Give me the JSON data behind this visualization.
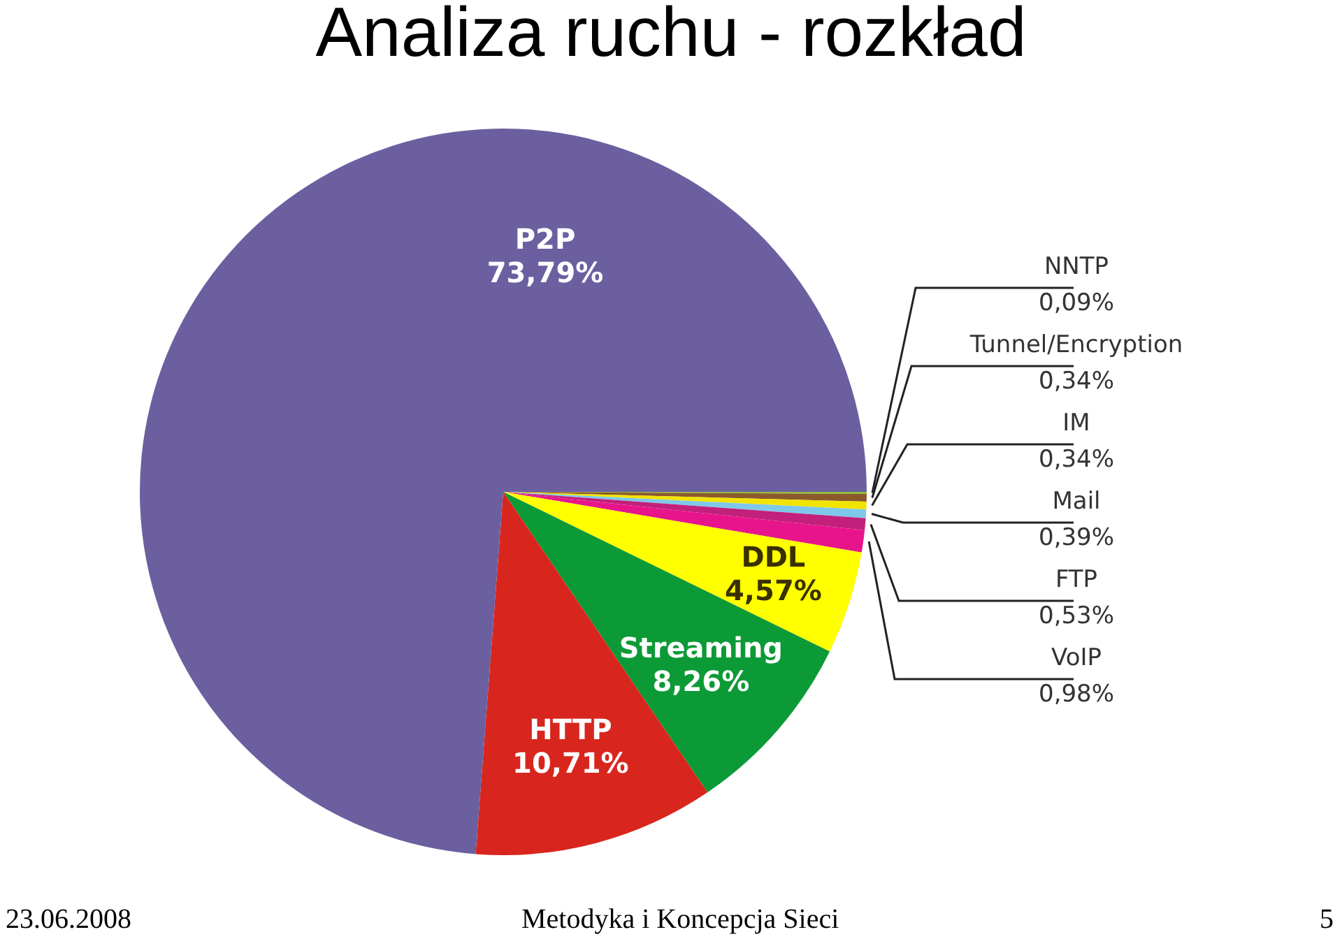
{
  "chart_data": {
    "type": "pie",
    "title": "Analiza ruchu - rozkład",
    "categories": [
      "NNTP",
      "Tunnel/Encryption",
      "IM",
      "Mail",
      "FTP",
      "VoIP",
      "DDL",
      "Streaming",
      "HTTP",
      "P2P"
    ],
    "values": [
      0.09,
      0.34,
      0.34,
      0.39,
      0.53,
      0.98,
      4.57,
      8.26,
      10.71,
      73.79
    ],
    "value_labels": [
      "0,09%",
      "0,34%",
      "0,34%",
      "0,39%",
      "0,53%",
      "0,98%",
      "4,57%",
      "8,26%",
      "10,71%",
      "73,79%"
    ],
    "colors": [
      "#8fbf3c",
      "#8b5a2b",
      "#f2e400",
      "#7ec8ea",
      "#c2207a",
      "#e8148c",
      "#ffff00",
      "#0c9a36",
      "#d8261e",
      "#6c5fa0"
    ],
    "legend": false,
    "annotations": [
      "23.06.2008",
      "Metodyka i Koncepcja Sieci",
      "5"
    ]
  }
}
